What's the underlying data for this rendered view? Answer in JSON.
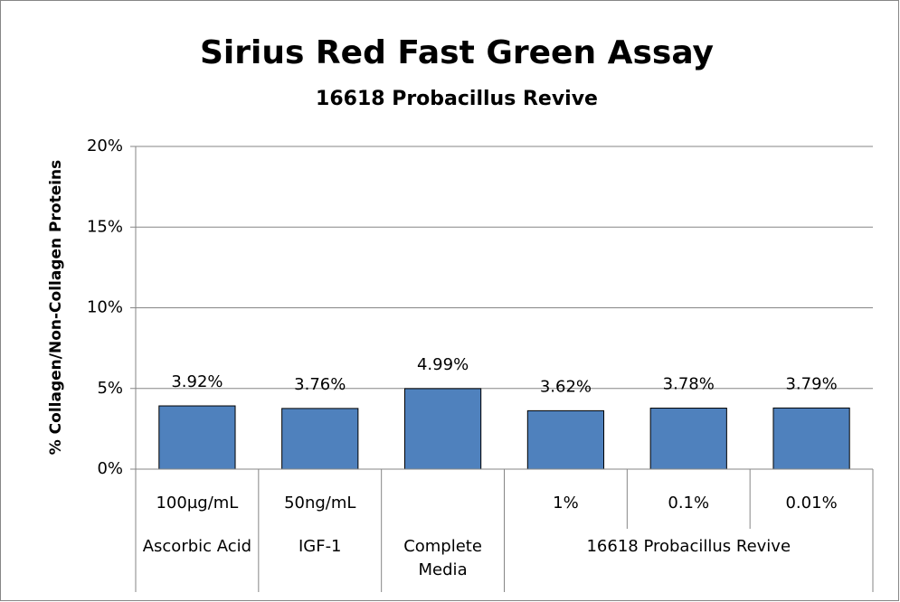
{
  "chart_data": {
    "type": "bar",
    "title": "Sirius Red Fast Green Assay",
    "subtitle": "16618 Probacillus Revive",
    "y_label": "% Collagen/Non-Collagen Proteins",
    "categories": [
      "100µg/mL",
      "50ng/mL",
      null,
      "1%",
      "0.1%",
      "0.01%"
    ],
    "groups": [
      "Ascorbic Acid",
      "IGF-1",
      "Complete Media",
      "16618 Probacillus Revive",
      "16618 Probacillus Revive",
      "16618 Probacillus Revive"
    ],
    "values": [
      3.92,
      3.76,
      4.99,
      3.62,
      3.78,
      3.79
    ],
    "value_labels": [
      "3.92%",
      "3.76%",
      "4.99%",
      "3.62%",
      "3.78%",
      "3.79%"
    ],
    "color": "#4f81bd",
    "ylim": [
      0,
      20
    ],
    "yticks": [
      {
        "value": 0,
        "label": "0%"
      },
      {
        "value": 5,
        "label": "5%"
      },
      {
        "value": 10,
        "label": "10%"
      },
      {
        "value": 15,
        "label": "15%"
      },
      {
        "value": 20,
        "label": "20%"
      }
    ],
    "grid": true
  }
}
